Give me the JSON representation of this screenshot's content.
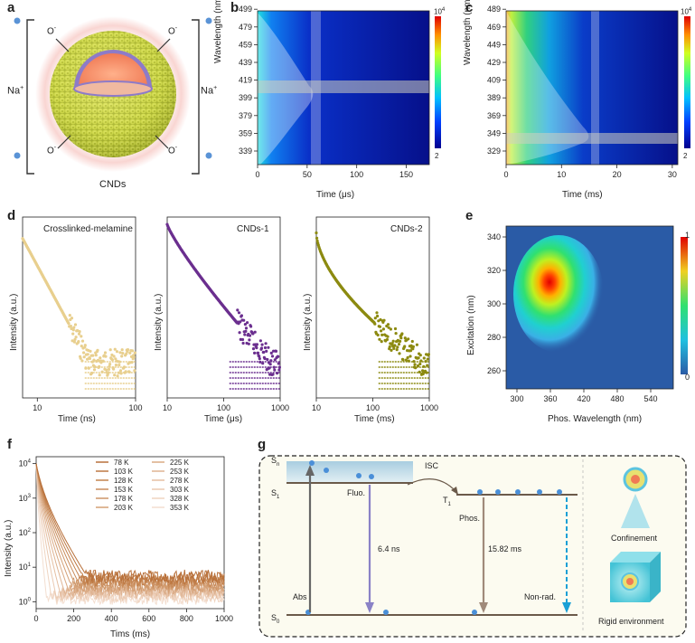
{
  "panel_labels": {
    "a": "a",
    "b": "b",
    "c": "c",
    "d": "d",
    "e": "e",
    "f": "f",
    "g": "g"
  },
  "panel_a": {
    "cation_left": "Na",
    "cation_right": "Na",
    "cation_charge": "+",
    "anion": "O",
    "anion_charge": "-",
    "caption": "CNDs"
  },
  "panel_b": {
    "xlabel": "Time (μs)",
    "ylabel": "Wavelength (nm)",
    "xticks": [
      "0",
      "50",
      "100",
      "150"
    ],
    "yticks": [
      "339",
      "359",
      "379",
      "399",
      "419",
      "439",
      "459",
      "479",
      "499"
    ],
    "colorbar_max": "10",
    "colorbar_max_exp": "4",
    "colorbar_min": "2"
  },
  "panel_c": {
    "xlabel": "Time (ms)",
    "ylabel": "Wavelength (nm)",
    "xticks": [
      "0",
      "10",
      "20",
      "30"
    ],
    "yticks": [
      "329",
      "349",
      "369",
      "389",
      "409",
      "429",
      "449",
      "469",
      "489"
    ],
    "colorbar_max": "10",
    "colorbar_max_exp": "4",
    "colorbar_min": "2"
  },
  "panel_d": {
    "ylabel": "Intensity (a.u.)",
    "subplots": [
      {
        "title": "Crosslinked-melamine",
        "xlabel": "Time (ns)",
        "xticks": [
          "10",
          "100"
        ],
        "color": "#e8cf8e"
      },
      {
        "title": "CNDs-1",
        "xlabel": "Time (μs)",
        "xticks": [
          "10",
          "100",
          "1000"
        ],
        "color": "#6b2f8f"
      },
      {
        "title": "CNDs-2",
        "xlabel": "Time (ms)",
        "xticks": [
          "10",
          "100",
          "1000"
        ],
        "color": "#8c8a10"
      }
    ]
  },
  "panel_e": {
    "xlabel": "Phos. Wavelength (nm)",
    "ylabel": "Excitation (nm)",
    "xticks": [
      "300",
      "360",
      "420",
      "480",
      "540"
    ],
    "yticks": [
      "260",
      "280",
      "300",
      "320",
      "340"
    ],
    "colorbar_max": "1",
    "colorbar_min": "0"
  },
  "panel_f": {
    "xlabel": "Tims (ms)",
    "ylabel": "Intensity (a.u.)",
    "xticks": [
      "0",
      "200",
      "400",
      "600",
      "800",
      "1000"
    ],
    "ytick_base": "10",
    "ytick_exps": [
      "0",
      "1",
      "2",
      "3",
      "4"
    ],
    "legend": [
      {
        "label": "78 K",
        "color": "#b8703a"
      },
      {
        "label": "103 K",
        "color": "#bd7842"
      },
      {
        "label": "128 K",
        "color": "#c3824e"
      },
      {
        "label": "153 K",
        "color": "#c98c5b"
      },
      {
        "label": "178 K",
        "color": "#ce9668"
      },
      {
        "label": "203 K",
        "color": "#d4a076"
      },
      {
        "label": "225 K",
        "color": "#daaa84"
      },
      {
        "label": "253 K",
        "color": "#dfb493"
      },
      {
        "label": "278 K",
        "color": "#e5bfa2"
      },
      {
        "label": "303 K",
        "color": "#eac9b1"
      },
      {
        "label": "328 K",
        "color": "#efd4c0"
      },
      {
        "label": "353 K",
        "color": "#f3ded0"
      }
    ]
  },
  "panel_g": {
    "sn": "S",
    "sn_sub": "n",
    "s1": "S",
    "s1_sub": "1",
    "t1": "T",
    "t1_sub": "1",
    "s0": "S",
    "s0_sub": "0",
    "isc": "ISC",
    "fluo": "Fluo.",
    "phos": "Phos.",
    "abs": "Abs",
    "nonrad": "Non-rad.",
    "fluo_time": "6.4 ns",
    "phos_time": "15.82 ms",
    "confinement": "Confinement",
    "rigid": "Rigid environment"
  }
}
